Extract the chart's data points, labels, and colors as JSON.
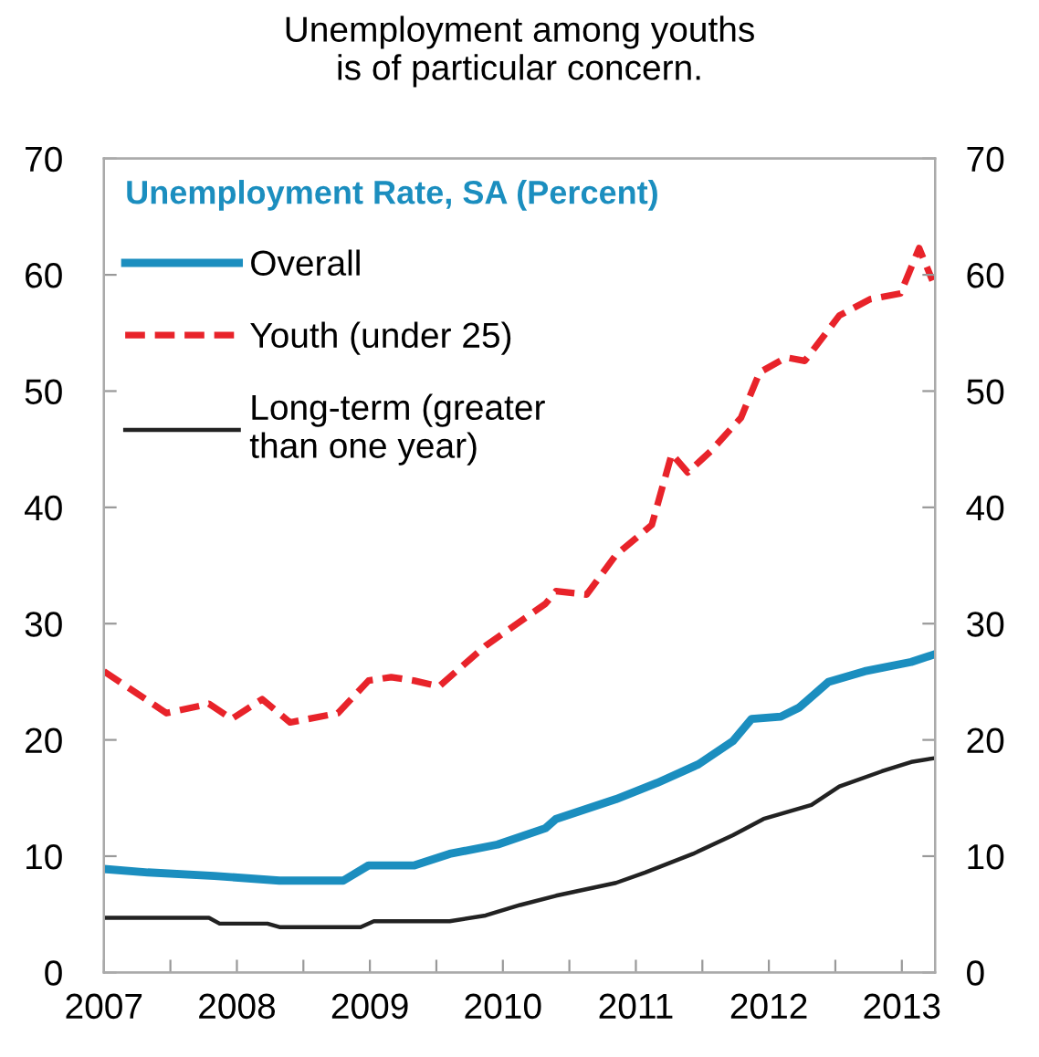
{
  "chart_data": {
    "type": "line",
    "title": "Unemployment among youths\nis of particular concern.",
    "legend_title": "Unemployment Rate, SA (Percent)",
    "legend": "top left",
    "grid": false,
    "xlim": [
      2007,
      2013.25
    ],
    "xticks": [
      {
        "value": 2007,
        "label": "2007"
      },
      {
        "value": 2007.5,
        "label": null
      },
      {
        "value": 2008,
        "label": "2008"
      },
      {
        "value": 2008.5,
        "label": null
      },
      {
        "value": 2009,
        "label": "2009"
      },
      {
        "value": 2009.5,
        "label": null
      },
      {
        "value": 2010,
        "label": "2010"
      },
      {
        "value": 2010.5,
        "label": null
      },
      {
        "value": 2011,
        "label": "2011"
      },
      {
        "value": 2011.5,
        "label": null
      },
      {
        "value": 2012,
        "label": "2012"
      },
      {
        "value": 2012.5,
        "label": null
      },
      {
        "value": 2013,
        "label": "2013"
      }
    ],
    "ylim": [
      0,
      70
    ],
    "yticks": [
      0,
      10,
      20,
      30,
      40,
      50,
      60,
      70
    ],
    "y2lim": [
      0,
      70
    ],
    "y2ticks": [
      0,
      10,
      20,
      30,
      40,
      50,
      60,
      70
    ],
    "series": [
      {
        "name": "Overall",
        "color": "#1b8ebf",
        "line_style": "solid",
        "x": [
          2007.0,
          2007.33,
          2007.83,
          2008.32,
          2008.8,
          2008.99,
          2009.33,
          2009.6,
          2009.96,
          2010.32,
          2010.4,
          2010.85,
          2011.16,
          2011.47,
          2011.73,
          2011.87,
          2012.09,
          2012.23,
          2012.45,
          2012.72,
          2013.07,
          2013.23
        ],
        "values": [
          8.9,
          8.6,
          8.3,
          7.9,
          7.9,
          9.2,
          9.2,
          10.2,
          11.0,
          12.4,
          13.2,
          14.9,
          16.3,
          17.9,
          19.9,
          21.8,
          22.0,
          22.8,
          25.0,
          25.9,
          26.7,
          27.3
        ]
      },
      {
        "name": "Youth (under 25)",
        "color": "#e8232a",
        "line_style": "dashed",
        "x": [
          2007.0,
          2007.47,
          2007.79,
          2007.96,
          2008.19,
          2008.4,
          2008.76,
          2008.99,
          2009.16,
          2009.33,
          2009.52,
          2009.87,
          2010.32,
          2010.4,
          2010.63,
          2010.85,
          2011.12,
          2011.27,
          2011.39,
          2011.56,
          2011.79,
          2011.93,
          2012.13,
          2012.27,
          2012.53,
          2012.76,
          2012.99,
          2013.13,
          2013.23
        ],
        "values": [
          25.9,
          22.3,
          23.1,
          21.8,
          23.5,
          21.5,
          22.3,
          25.1,
          25.4,
          25.1,
          24.6,
          28.1,
          31.7,
          32.8,
          32.5,
          35.9,
          38.5,
          44.6,
          43.0,
          44.8,
          47.7,
          51.6,
          52.9,
          52.6,
          56.5,
          57.9,
          58.4,
          62.3,
          59.5
        ]
      },
      {
        "name": "Long-term (greater\nthan one year)",
        "color": "#222222",
        "line_style": "solid",
        "x": [
          2007.0,
          2007.79,
          2007.87,
          2008.23,
          2008.32,
          2008.93,
          2009.03,
          2009.6,
          2009.87,
          2010.13,
          2010.4,
          2010.85,
          2011.07,
          2011.43,
          2011.73,
          2011.96,
          2012.32,
          2012.53,
          2012.85,
          2013.07,
          2013.23
        ],
        "values": [
          4.7,
          4.7,
          4.2,
          4.2,
          3.9,
          3.9,
          4.4,
          4.4,
          4.9,
          5.8,
          6.6,
          7.7,
          8.6,
          10.2,
          11.8,
          13.2,
          14.4,
          16.0,
          17.3,
          18.1,
          18.4
        ]
      }
    ]
  }
}
